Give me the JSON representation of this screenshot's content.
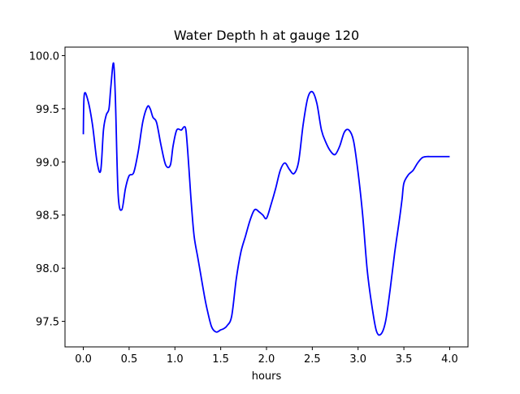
{
  "chart_data": {
    "type": "line",
    "title": "Water Depth h at gauge 120",
    "xlabel": "hours",
    "ylabel": "",
    "xlim": [
      -0.2,
      4.2
    ],
    "ylim": [
      97.26,
      100.08
    ],
    "xticks": [
      0.0,
      0.5,
      1.0,
      1.5,
      2.0,
      2.5,
      3.0,
      3.5,
      4.0
    ],
    "xtick_labels": [
      "0.0",
      "0.5",
      "1.0",
      "1.5",
      "2.0",
      "2.5",
      "3.0",
      "3.5",
      "4.0"
    ],
    "yticks": [
      97.5,
      98.0,
      98.5,
      99.0,
      99.5,
      100.0
    ],
    "ytick_labels": [
      "97.5",
      "98.0",
      "98.5",
      "99.0",
      "99.5",
      "100.0"
    ],
    "grid": false,
    "series": [
      {
        "color": "#0000ff",
        "x": [
          0.0,
          0.01,
          0.05,
          0.1,
          0.15,
          0.19,
          0.22,
          0.25,
          0.28,
          0.3,
          0.33,
          0.35,
          0.38,
          0.42,
          0.46,
          0.5,
          0.55,
          0.6,
          0.65,
          0.7,
          0.73,
          0.76,
          0.8,
          0.85,
          0.9,
          0.95,
          0.98,
          1.02,
          1.07,
          1.1,
          1.12,
          1.14,
          1.16,
          1.18,
          1.21,
          1.25,
          1.28,
          1.32,
          1.35,
          1.4,
          1.45,
          1.5,
          1.53,
          1.57,
          1.62,
          1.67,
          1.72,
          1.77,
          1.82,
          1.87,
          1.92,
          1.96,
          2.0,
          2.05,
          2.1,
          2.15,
          2.2,
          2.25,
          2.3,
          2.35,
          2.4,
          2.45,
          2.5,
          2.55,
          2.6,
          2.65,
          2.7,
          2.75,
          2.8,
          2.85,
          2.9,
          2.95,
          3.0,
          3.05,
          3.1,
          3.15,
          3.2,
          3.25,
          3.3,
          3.35,
          3.4,
          3.45,
          3.48,
          3.5,
          3.55,
          3.6,
          3.65,
          3.7,
          3.75,
          3.8,
          3.85,
          3.9,
          3.95,
          4.0
        ],
        "y": [
          99.26,
          99.63,
          99.58,
          99.35,
          99.0,
          98.92,
          99.3,
          99.44,
          99.5,
          99.7,
          99.93,
          99.6,
          98.7,
          98.55,
          98.75,
          98.87,
          98.9,
          99.1,
          99.38,
          99.52,
          99.5,
          99.42,
          99.37,
          99.15,
          98.97,
          98.97,
          99.15,
          99.3,
          99.3,
          99.33,
          99.3,
          99.1,
          98.85,
          98.6,
          98.3,
          98.1,
          97.95,
          97.75,
          97.62,
          97.45,
          97.4,
          97.42,
          97.43,
          97.46,
          97.55,
          97.9,
          98.15,
          98.3,
          98.45,
          98.55,
          98.53,
          98.5,
          98.47,
          98.6,
          98.75,
          98.92,
          98.99,
          98.93,
          98.89,
          99.0,
          99.35,
          99.6,
          99.66,
          99.55,
          99.3,
          99.18,
          99.1,
          99.07,
          99.15,
          99.28,
          99.3,
          99.2,
          98.9,
          98.5,
          97.98,
          97.65,
          97.41,
          97.38,
          97.5,
          97.8,
          98.15,
          98.45,
          98.65,
          98.8,
          98.88,
          98.92,
          98.99,
          99.04,
          99.05,
          99.05,
          99.05,
          99.05,
          99.05,
          99.05
        ]
      }
    ]
  }
}
